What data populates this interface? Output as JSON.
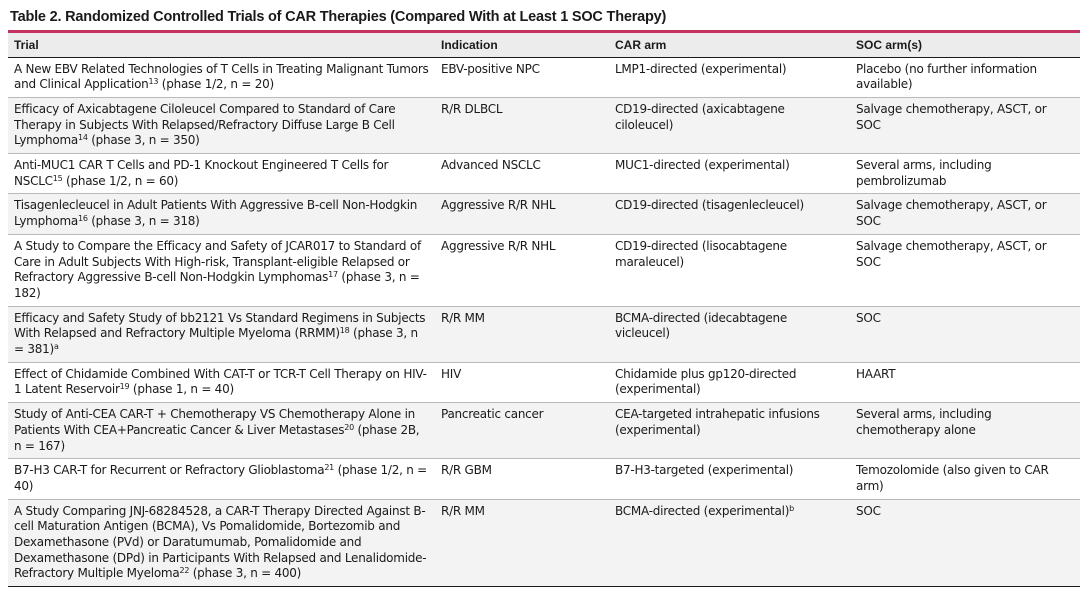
{
  "table": {
    "title": "Table 2. Randomized Controlled Trials of CAR Therapies (Compared With at Least 1 SOC Therapy)",
    "headers": {
      "trial": "Trial",
      "indication": "Indication",
      "car_arm": "CAR arm",
      "soc_arm": "SOC arm(s)"
    },
    "rows": [
      {
        "trial": "A New EBV Related Technologies of T Cells in Treating Malignant Tumors and Clinical Application",
        "trial_ref": "13",
        "trial_tail": " (phase 1/2, n = 20)",
        "trial_tail_ref": "",
        "indication": "EBV-positive NPC",
        "car_arm": "LMP1-directed (experimental)",
        "car_arm_ref": "",
        "soc_arm": "Placebo (no further information available)"
      },
      {
        "trial": "Efficacy of Axicabtagene Ciloleucel Compared to Standard of Care Therapy in Subjects With Relapsed/Refractory Diffuse Large B Cell Lymphoma",
        "trial_ref": "14",
        "trial_tail": " (phase 3, n = 350)",
        "trial_tail_ref": "",
        "indication": "R/R DLBCL",
        "car_arm": "CD19-directed (axicabtagene ciloleucel)",
        "car_arm_ref": "",
        "soc_arm": "Salvage chemotherapy, ASCT, or SOC"
      },
      {
        "trial": "Anti-MUC1 CAR T Cells and PD-1 Knockout Engineered T Cells for NSCLC",
        "trial_ref": "15",
        "trial_tail": " (phase 1/2, n = 60)",
        "trial_tail_ref": "",
        "indication": "Advanced NSCLC",
        "car_arm": "MUC1-directed (experimental)",
        "car_arm_ref": "",
        "soc_arm": "Several arms, including pembrolizumab"
      },
      {
        "trial": "Tisagenlecleucel in Adult Patients With Aggressive B-cell Non-Hodgkin Lymphoma",
        "trial_ref": "16",
        "trial_tail": " (phase 3, n = 318)",
        "trial_tail_ref": "",
        "indication": "Aggressive R/R NHL",
        "car_arm": "CD19-directed (tisagenlecleucel)",
        "car_arm_ref": "",
        "soc_arm": "Salvage chemotherapy, ASCT, or SOC"
      },
      {
        "trial": "A Study to Compare the Efficacy and Safety of JCAR017 to Standard of Care in Adult Subjects With High-risk, Transplant-eligible Relapsed or Refractory Aggressive B-cell Non-Hodgkin Lymphomas",
        "trial_ref": "17",
        "trial_tail": " (phase 3, n = 182)",
        "trial_tail_ref": "",
        "indication": "Aggressive R/R NHL",
        "car_arm": "CD19-directed (lisocabtagene maraleucel)",
        "car_arm_ref": "",
        "soc_arm": "Salvage chemotherapy, ASCT, or SOC"
      },
      {
        "trial": "Efficacy and Safety Study of bb2121 Vs Standard Regimens in Subjects With Relapsed and Refractory Multiple Myeloma (RRMM)",
        "trial_ref": "18",
        "trial_tail": " (phase 3, n = 381)",
        "trial_tail_ref": "a",
        "indication": "R/R MM",
        "car_arm": "BCMA-directed (idecabtagene vicleucel)",
        "car_arm_ref": "",
        "soc_arm": "SOC"
      },
      {
        "trial": "Effect of Chidamide Combined With CAT-T or TCR-T Cell Therapy on HIV-1 Latent Reservoir",
        "trial_ref": "19",
        "trial_tail": " (phase 1, n = 40)",
        "trial_tail_ref": "",
        "indication": "HIV",
        "car_arm": "Chidamide plus gp120-directed (experimental)",
        "car_arm_ref": "",
        "soc_arm": "HAART"
      },
      {
        "trial": "Study of Anti-CEA CAR-T + Chemotherapy VS Chemotherapy Alone in Patients With CEA+Pancreatic Cancer & Liver Metastases",
        "trial_ref": "20",
        "trial_tail": " (phase 2B, n = 167)",
        "trial_tail_ref": "",
        "indication": "Pancreatic cancer",
        "car_arm": "CEA-targeted intrahepatic infusions (experimental)",
        "car_arm_ref": "",
        "soc_arm": "Several arms, including chemotherapy alone"
      },
      {
        "trial": "B7-H3 CAR-T for Recurrent or Refractory Glioblastoma",
        "trial_ref": "21",
        "trial_tail": " (phase 1/2, n = 40)",
        "trial_tail_ref": "",
        "indication": "R/R GBM",
        "car_arm": "B7-H3-targeted (experimental)",
        "car_arm_ref": "",
        "soc_arm": "Temozolomide (also given to CAR arm)"
      },
      {
        "trial": "A Study Comparing JNJ-68284528, a CAR-T Therapy Directed Against B-cell Maturation Antigen (BCMA), Vs Pomalidomide, Bortezomib and Dexamethasone (PVd) or Daratumumab, Pomalidomide and Dexamethasone (DPd) in Participants With Relapsed and Lenalidomide-Refractory Multiple Myeloma",
        "trial_ref": "22",
        "trial_tail": " (phase 3, n = 400)",
        "trial_tail_ref": "",
        "indication": "R/R MM",
        "car_arm": "BCMA-directed (experimental)",
        "car_arm_ref": "b",
        "soc_arm": "SOC"
      }
    ]
  }
}
